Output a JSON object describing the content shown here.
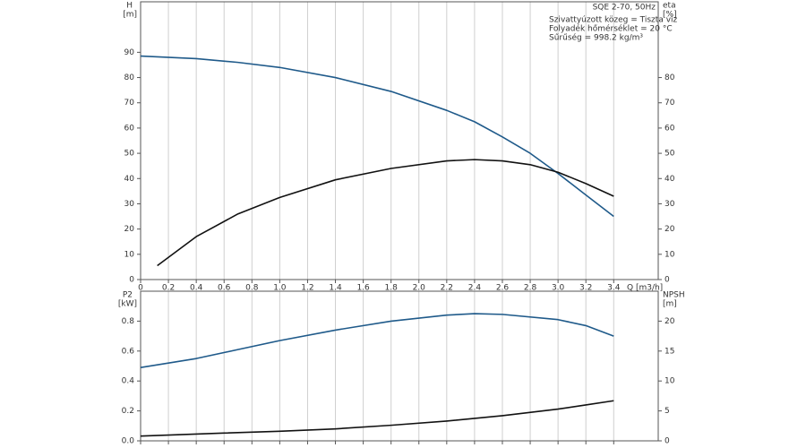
{
  "chart_data": [
    {
      "type": "line",
      "title": "SQE 2-70, 50Hz",
      "ylabel": "H",
      "yunit": "[m]",
      "y2label": "eta",
      "y2unit": "[%]",
      "xlabel": "Q [m3/h]",
      "annotations": [
        "Szivattyúzott közeg = Tiszta víz",
        "Folyadék hőmérséklet = 20 °C",
        "Sűrűség = 998.2 kg/m³"
      ],
      "xlim": [
        0,
        3.72
      ],
      "xticks": [
        0,
        0.2,
        0.4,
        0.6,
        0.8,
        {
          "value": 1,
          "label": "1.0"
        },
        1.2,
        1.4,
        1.6,
        1.8,
        {
          "value": 2,
          "label": "2.0"
        },
        2.2,
        2.4,
        2.6,
        2.8,
        {
          "value": 3,
          "label": "3.0"
        },
        3.2,
        3.4
      ],
      "ylim": [
        0,
        110
      ],
      "yticks": [
        0,
        10,
        20,
        30,
        40,
        50,
        60,
        70,
        80,
        90
      ],
      "y2lim": [
        0,
        110
      ],
      "y2ticks": [
        0,
        10,
        20,
        30,
        40,
        50,
        60,
        70,
        80
      ],
      "grid": "x",
      "series": [
        {
          "color": "#1f5a8a",
          "axis": "y",
          "x": [
            0,
            0.4,
            0.7,
            1.0,
            1.4,
            1.8,
            2.2,
            2.4,
            2.6,
            2.8,
            3.0,
            3.2,
            3.4
          ],
          "values": [
            88.5,
            87.5,
            86,
            84,
            80,
            74.5,
            67,
            62.5,
            56.5,
            50,
            42,
            33.5,
            25
          ]
        },
        {
          "color": "#111111",
          "axis": "y2",
          "x": [
            0.12,
            0.4,
            0.7,
            1.0,
            1.4,
            1.8,
            2.2,
            2.4,
            2.6,
            2.8,
            3.0,
            3.2,
            3.4
          ],
          "values": [
            5.5,
            17,
            26,
            32.5,
            39.5,
            44,
            47,
            47.5,
            47,
            45.5,
            42.5,
            38,
            33
          ]
        }
      ]
    },
    {
      "type": "line",
      "ylabel": "P2",
      "yunit": "[kW]",
      "y2label": "NPSH",
      "y2unit": "[m]",
      "xlim": [
        0,
        3.72
      ],
      "xticks": [
        0,
        0.2,
        0.4,
        0.6,
        0.8,
        1,
        1.2,
        1.4,
        1.6,
        1.8,
        2,
        2.2,
        2.4,
        2.6,
        2.8,
        3,
        3.2,
        3.4
      ],
      "ylim": [
        0,
        1.0
      ],
      "yticks": [
        {
          "value": 0,
          "label": "0.0"
        },
        0.2,
        0.4,
        0.6,
        0.8
      ],
      "y2lim": [
        0,
        25
      ],
      "y2ticks": [
        0,
        5,
        10,
        15,
        20
      ],
      "grid": "x",
      "series": [
        {
          "color": "#1f5a8a",
          "axis": "y",
          "x": [
            0,
            0.4,
            0.7,
            1.0,
            1.4,
            1.8,
            2.2,
            2.4,
            2.6,
            3.0,
            3.2,
            3.4
          ],
          "values": [
            0.49,
            0.55,
            0.61,
            0.67,
            0.74,
            0.8,
            0.84,
            0.85,
            0.845,
            0.81,
            0.77,
            0.7
          ]
        },
        {
          "color": "#111111",
          "axis": "y2",
          "x": [
            0,
            0.6,
            1.0,
            1.4,
            1.8,
            2.2,
            2.6,
            3.0,
            3.2,
            3.4
          ],
          "values": [
            0.8,
            1.3,
            1.6,
            2.0,
            2.6,
            3.3,
            4.2,
            5.3,
            6.0,
            6.7
          ]
        }
      ]
    }
  ]
}
